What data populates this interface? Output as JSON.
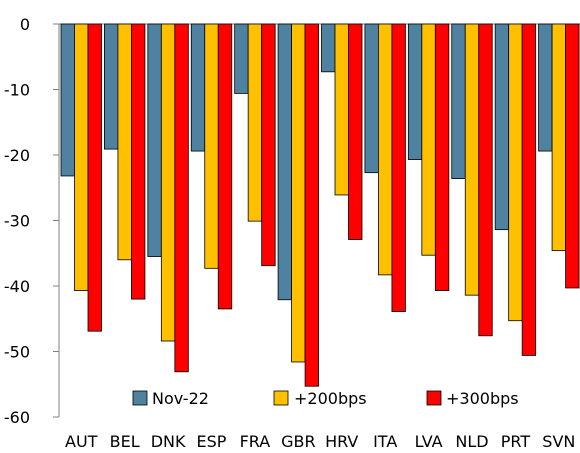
{
  "chart_data": {
    "type": "bar",
    "categories": [
      "AUT",
      "BEL",
      "DNK",
      "ESP",
      "FRA",
      "GBR",
      "HRV",
      "ITA",
      "LVA",
      "NLD",
      "PRT",
      "SVN"
    ],
    "series": [
      {
        "name": "Nov-22",
        "color": "#4f81a0",
        "values": [
          -23.2,
          -19.1,
          -35.5,
          -19.4,
          -10.6,
          -42.1,
          -7.3,
          -22.7,
          -20.7,
          -23.6,
          -31.4,
          -19.4
        ]
      },
      {
        "name": "+200bps",
        "color": "#ffc000",
        "values": [
          -40.7,
          -36.0,
          -48.4,
          -37.3,
          -30.1,
          -51.6,
          -26.1,
          -38.3,
          -35.3,
          -41.4,
          -45.3,
          -34.6
        ]
      },
      {
        "name": "+300bps",
        "color": "#ff0000",
        "values": [
          -46.9,
          -42.0,
          -53.1,
          -43.5,
          -36.9,
          -55.3,
          -32.9,
          -43.9,
          -40.7,
          -47.6,
          -50.6,
          -40.3
        ]
      }
    ],
    "ylim": [
      -60,
      0
    ],
    "yticks": [
      "0",
      "-10",
      "-20",
      "-30",
      "-40",
      "-50",
      "-60"
    ],
    "ytick_values": [
      0,
      -10,
      -20,
      -30,
      -40,
      -50,
      -60
    ],
    "legend_position": "bottom-inside",
    "grid": false,
    "title": "",
    "xlabel": "",
    "ylabel": ""
  }
}
